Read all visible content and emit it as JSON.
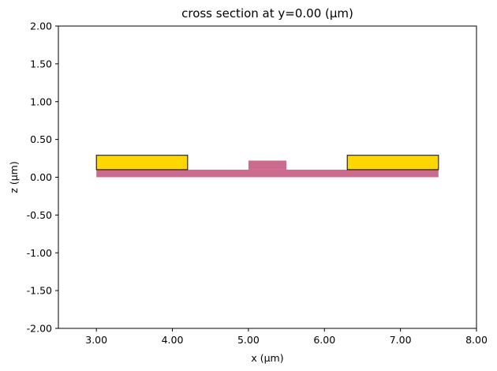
{
  "chart_data": {
    "type": "cross-section",
    "title": "cross section at y=0.00 (μm)",
    "xlabel": "x (μm)",
    "ylabel": "z (μm)",
    "xlim": [
      2.5,
      8.0
    ],
    "ylim": [
      -2.0,
      2.0
    ],
    "x_ticks": [
      "3.00",
      "4.00",
      "5.00",
      "6.00",
      "7.00",
      "8.00"
    ],
    "y_ticks": [
      "2.00",
      "1.50",
      "1.00",
      "0.50",
      "0.00",
      "-0.50",
      "-1.00",
      "-1.50",
      "-2.00"
    ],
    "grid": false,
    "shapes": [
      {
        "name": "slab",
        "x": [
          3.0,
          7.5
        ],
        "z": [
          0.0,
          0.1
        ],
        "fill": "#cc6b8e",
        "edge": "none"
      },
      {
        "name": "ridge",
        "x": [
          5.0,
          5.5
        ],
        "z": [
          0.1,
          0.22
        ],
        "fill": "#cc6b8e",
        "edge": "none"
      },
      {
        "name": "electrode-left",
        "x": [
          3.0,
          4.2
        ],
        "z": [
          0.1,
          0.29
        ],
        "fill": "#ffd700",
        "edge": "#000000"
      },
      {
        "name": "electrode-right",
        "x": [
          6.3,
          7.5
        ],
        "z": [
          0.1,
          0.29
        ],
        "fill": "#ffd700",
        "edge": "#000000"
      }
    ]
  }
}
